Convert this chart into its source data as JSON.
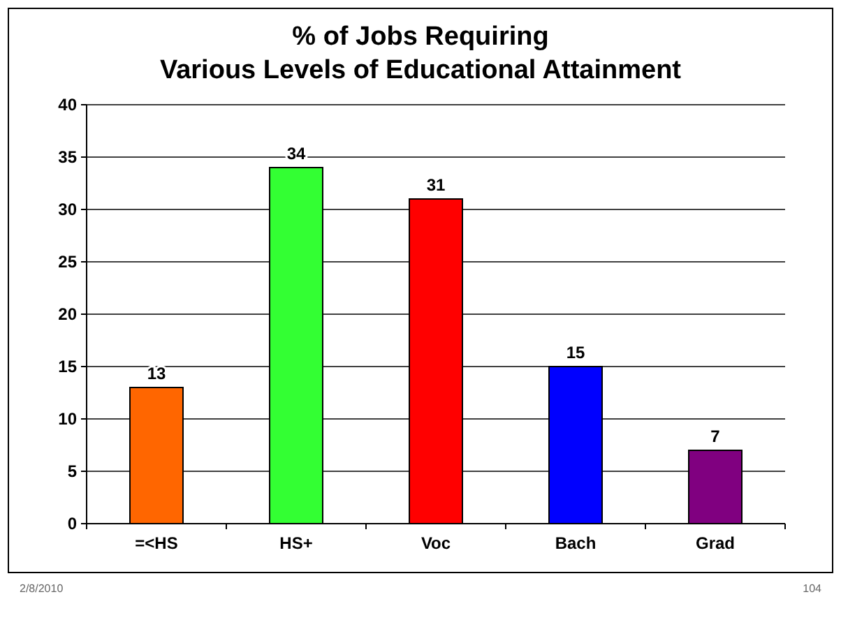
{
  "chart_data": {
    "type": "bar",
    "title": "% of Jobs Requiring\nVarious Levels of Educational Attainment",
    "categories": [
      "=<HS",
      "HS+",
      "Voc",
      "Bach",
      "Grad"
    ],
    "values": [
      13,
      34,
      31,
      15,
      7
    ],
    "colors": [
      "#ff6600",
      "#33ff33",
      "#ff0000",
      "#0000ff",
      "#800080"
    ],
    "ylim": [
      0,
      40
    ],
    "yticks": [
      0,
      5,
      10,
      15,
      20,
      25,
      30,
      35,
      40
    ],
    "grid": "y",
    "data_labels": true,
    "annotations": [
      "2/8/2010",
      "104"
    ]
  }
}
